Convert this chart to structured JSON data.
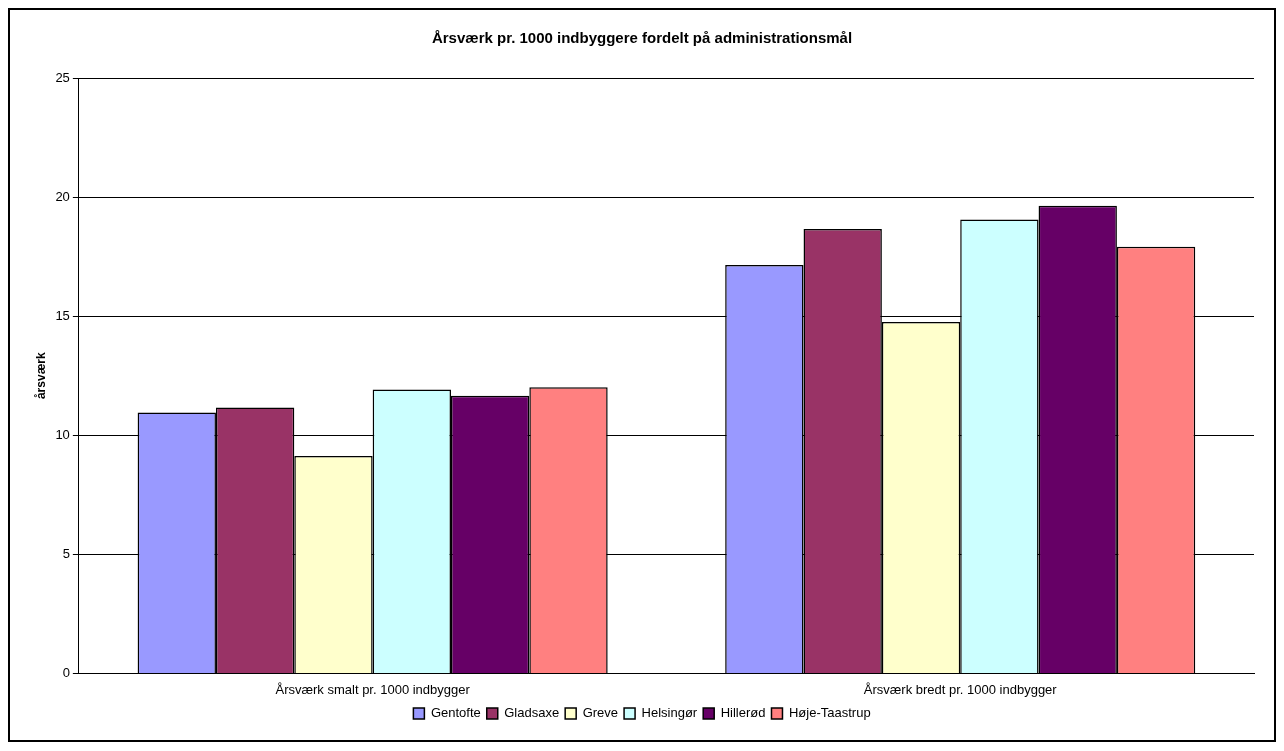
{
  "chart_data": {
    "type": "bar",
    "title": "Årsværk pr. 1000 indbyggere fordelt på administrationsmål",
    "ylabel": "årsværk",
    "categories": [
      "Årsværk smalt pr. 1000 indbygger",
      "Årsværk bredt pr. 1000 indbygger"
    ],
    "series": [
      {
        "name": "Gentofte",
        "color": "#9999ff",
        "values": [
          10.95,
          17.15
        ]
      },
      {
        "name": "Gladsaxe",
        "color": "#993366",
        "values": [
          11.17,
          18.66
        ]
      },
      {
        "name": "Greve",
        "color": "#ffffcc",
        "values": [
          9.13,
          14.76
        ]
      },
      {
        "name": "Helsingør",
        "color": "#ccffff",
        "values": [
          11.92,
          19.06
        ]
      },
      {
        "name": "Hillerød",
        "color": "#660066",
        "values": [
          11.66,
          19.64
        ]
      },
      {
        "name": "Høje-Taastrup",
        "color": "#ff8080",
        "values": [
          12.01,
          17.91
        ]
      }
    ],
    "ylim": [
      0,
      25
    ],
    "yticks": [
      0,
      5,
      10,
      15,
      20,
      25
    ],
    "grid": "y",
    "legend": "bottom"
  }
}
